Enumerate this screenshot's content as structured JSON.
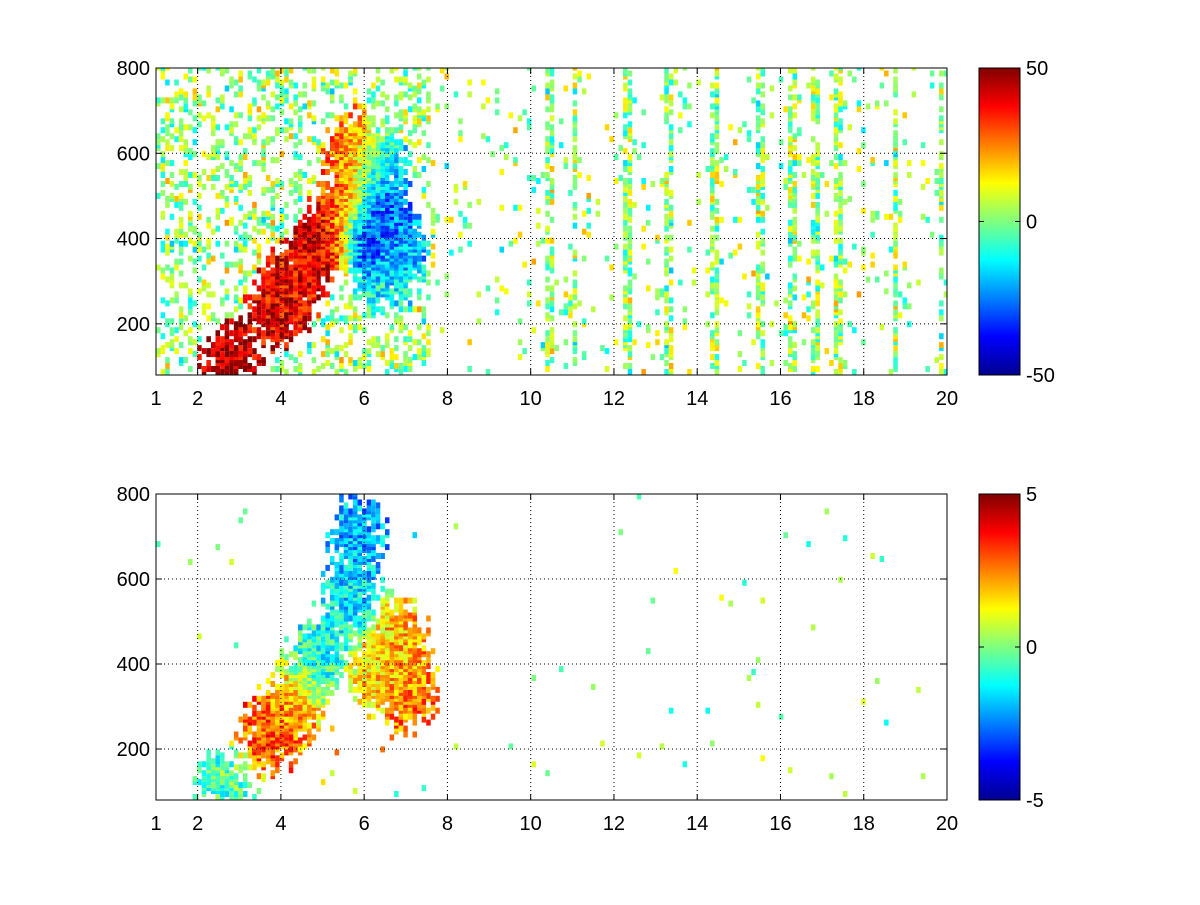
{
  "chart_data": [
    {
      "type": "heatmap",
      "title": "",
      "xlabel": "",
      "ylabel": "",
      "xlim": [
        1,
        20
      ],
      "ylim": [
        80,
        800
      ],
      "x_ticks": [
        1,
        2,
        4,
        6,
        8,
        10,
        12,
        14,
        16,
        18,
        20
      ],
      "x_tick_labels": [
        "1",
        "2",
        "4",
        "6",
        "8",
        "10",
        "12",
        "14",
        "16",
        "18",
        "20"
      ],
      "y_ticks": [
        200,
        400,
        600,
        800
      ],
      "y_tick_labels": [
        "200",
        "400",
        "600",
        "800"
      ],
      "grid": true,
      "colormap": "jet",
      "colorbar": {
        "min": -50,
        "max": 50,
        "ticks": [
          50,
          0,
          -50
        ],
        "tick_labels": [
          "50",
          "0",
          "-50"
        ]
      },
      "features": [
        {
          "x": 2.7,
          "y": 100,
          "value": 45
        },
        {
          "x": 3.8,
          "y": 220,
          "value": 40
        },
        {
          "x": 4.3,
          "y": 290,
          "value": 38
        },
        {
          "x": 5.0,
          "y": 380,
          "value": 42
        },
        {
          "x": 5.5,
          "y": 470,
          "value": 30
        },
        {
          "x": 5.7,
          "y": 600,
          "value": 25
        },
        {
          "x": 6.0,
          "y": 400,
          "value": -40
        },
        {
          "x": 6.4,
          "y": 450,
          "value": -30
        },
        {
          "x": 6.8,
          "y": 380,
          "value": -20
        },
        {
          "x": 6.3,
          "y": 560,
          "value": -15
        },
        {
          "x": 6.5,
          "y": 300,
          "value": -10
        }
      ],
      "streak_columns": [
        10.4,
        11.0,
        12.3,
        13.3,
        14.4,
        15.5,
        16.2,
        16.8,
        17.3,
        18.7,
        19.8
      ]
    },
    {
      "type": "heatmap",
      "title": "",
      "xlabel": "",
      "ylabel": "",
      "xlim": [
        1,
        20
      ],
      "ylim": [
        80,
        800
      ],
      "x_ticks": [
        1,
        2,
        4,
        6,
        8,
        10,
        12,
        14,
        16,
        18,
        20
      ],
      "x_tick_labels": [
        "1",
        "2",
        "4",
        "6",
        "8",
        "10",
        "12",
        "14",
        "16",
        "18",
        "20"
      ],
      "y_ticks": [
        200,
        400,
        600,
        800
      ],
      "y_tick_labels": [
        "200",
        "400",
        "600",
        "800"
      ],
      "grid": true,
      "colormap": "jet",
      "colorbar": {
        "min": -5,
        "max": 5,
        "ticks": [
          5,
          0,
          -5
        ],
        "tick_labels": [
          "5",
          "0",
          "-5"
        ]
      },
      "features": [
        {
          "x": 2.6,
          "y": 100,
          "value": -0.5
        },
        {
          "x": 3.7,
          "y": 230,
          "value": 3
        },
        {
          "x": 4.3,
          "y": 300,
          "value": 2
        },
        {
          "x": 4.8,
          "y": 400,
          "value": -1
        },
        {
          "x": 5.6,
          "y": 550,
          "value": -1.5
        },
        {
          "x": 5.8,
          "y": 700,
          "value": -2
        },
        {
          "x": 6.3,
          "y": 380,
          "value": 1.5
        },
        {
          "x": 6.8,
          "y": 450,
          "value": 2
        },
        {
          "x": 7.0,
          "y": 330,
          "value": 2.5
        }
      ]
    }
  ]
}
